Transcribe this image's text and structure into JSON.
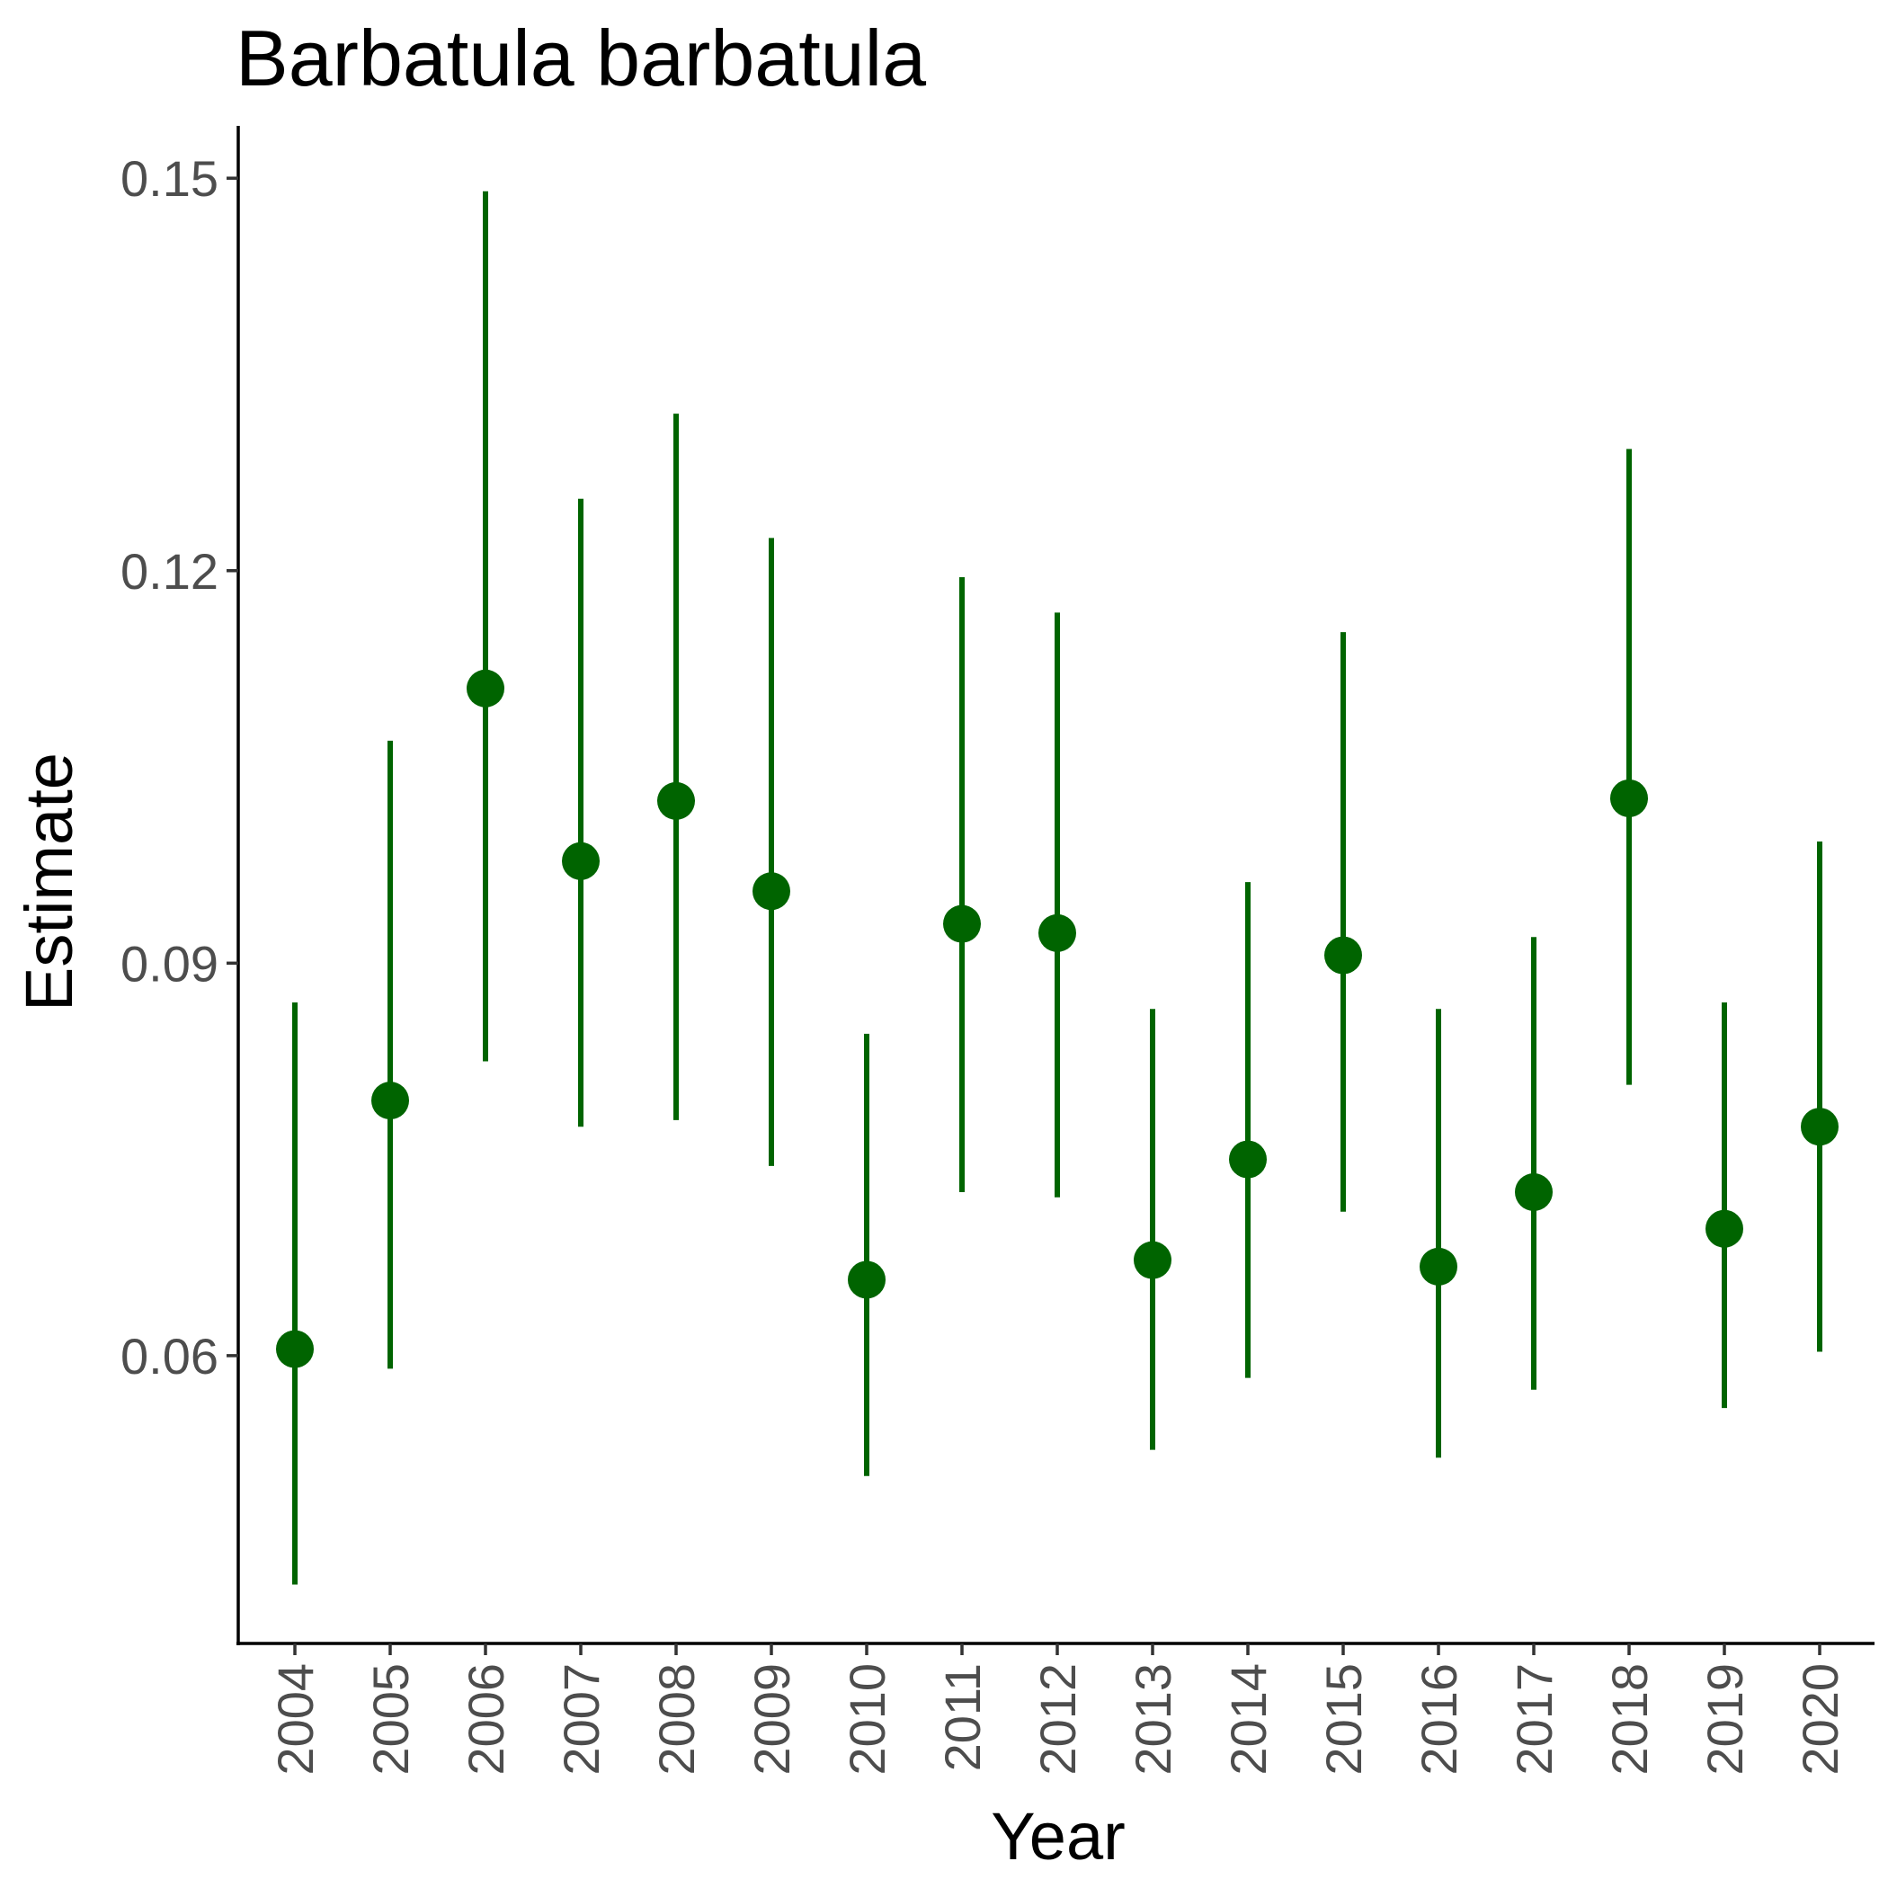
{
  "chart_data": {
    "type": "scatter",
    "title": "Barbatula barbatula",
    "xlabel": "Year",
    "ylabel": "Estimate",
    "categories": [
      "2004",
      "2005",
      "2006",
      "2007",
      "2008",
      "2009",
      "2010",
      "2011",
      "2012",
      "2013",
      "2014",
      "2015",
      "2016",
      "2017",
      "2018",
      "2019",
      "2020"
    ],
    "series": [
      {
        "estimate": [
          0.0605,
          0.0795,
          0.111,
          0.0978,
          0.1024,
          0.0955,
          0.0658,
          0.093,
          0.0923,
          0.0673,
          0.075,
          0.0906,
          0.0668,
          0.0725,
          0.1026,
          0.0697,
          0.0775
        ],
        "lower": [
          0.0425,
          0.059,
          0.0825,
          0.0775,
          0.078,
          0.0745,
          0.0508,
          0.0725,
          0.0721,
          0.0528,
          0.0583,
          0.071,
          0.0522,
          0.0574,
          0.0807,
          0.056,
          0.0603
        ],
        "upper": [
          0.087,
          0.107,
          0.149,
          0.1255,
          0.132,
          0.1225,
          0.0846,
          0.1195,
          0.1168,
          0.0865,
          0.0962,
          0.1153,
          0.0865,
          0.092,
          0.1293,
          0.087,
          0.0993
        ]
      }
    ],
    "yticks": [
      "0.06",
      "0.09",
      "0.12",
      "0.15"
    ],
    "ylim": [
      0.038,
      0.154
    ],
    "color": "#006400",
    "grid": false,
    "legend": "none"
  }
}
